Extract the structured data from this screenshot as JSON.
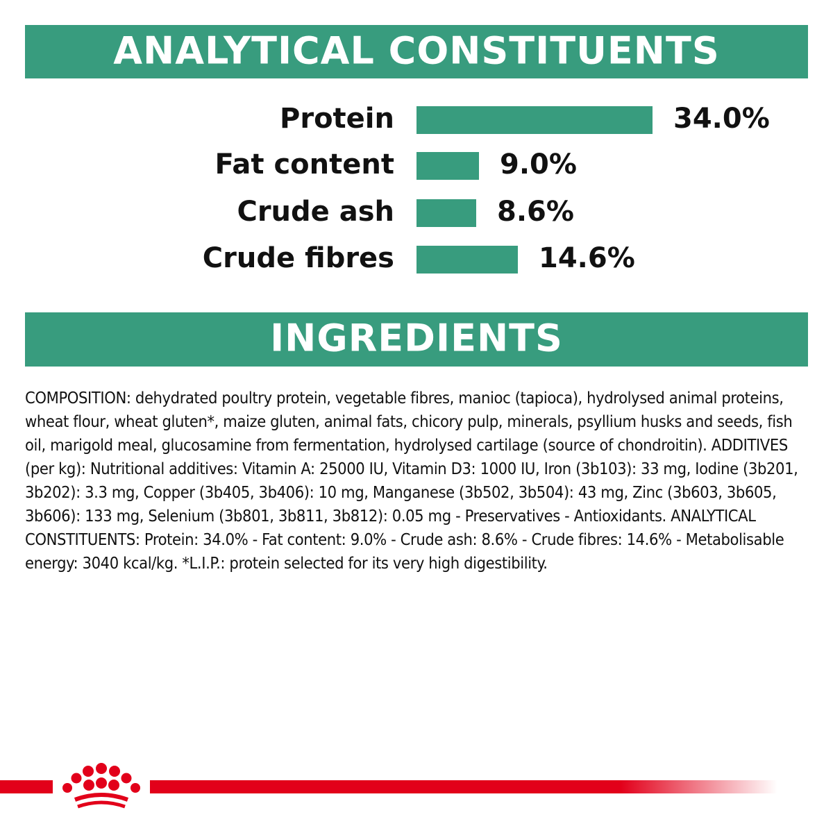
{
  "chart_data": {
    "type": "bar",
    "orientation": "horizontal",
    "title": "ANALYTICAL CONSTITUENTS",
    "categories": [
      "Protein",
      "Fat content",
      "Crude ash",
      "Crude fibres"
    ],
    "values": [
      34,
      9,
      8.6,
      14.6
    ],
    "value_labels": [
      "34.0%",
      "9.0%",
      "8.6%",
      "14.6%"
    ],
    "color": "#389c7e"
  },
  "ingredients": {
    "title": "INGREDIENTS",
    "text": "COMPOSITION: dehydrated poultry protein, vegetable fibres, manioc (tapioca), hydrolysed animal proteins, wheat flour, wheat gluten*, maize gluten, animal fats, chicory pulp, minerals, psyllium husks and seeds, fish oil, marigold meal, glucosamine from fermentation, hydrolysed cartilage (source of chondroitin). ADDITIVES (per kg): Nutritional additives: Vitamin A: 25000 IU, Vitamin D3: 1000 IU, Iron (3b103): 33 mg, Iodine (3b201, 3b202): 3.3 mg, Copper (3b405, 3b406): 10 mg, Manganese (3b502, 3b504): 43 mg, Zinc (3b603, 3b605, 3b606): 133 mg, Selenium (3b801, 3b811, 3b812): 0.05 mg - Preservatives - Antioxidants. ANALYTICAL CONSTITUENTS: Protein: 34.0% - Fat content: 9.0% - Crude ash: 8.6% - Crude fibres: 14.6% - Metabolisable energy: 3040 kcal/kg. *L.I.P.: protein selected for its very high digestibility."
  }
}
